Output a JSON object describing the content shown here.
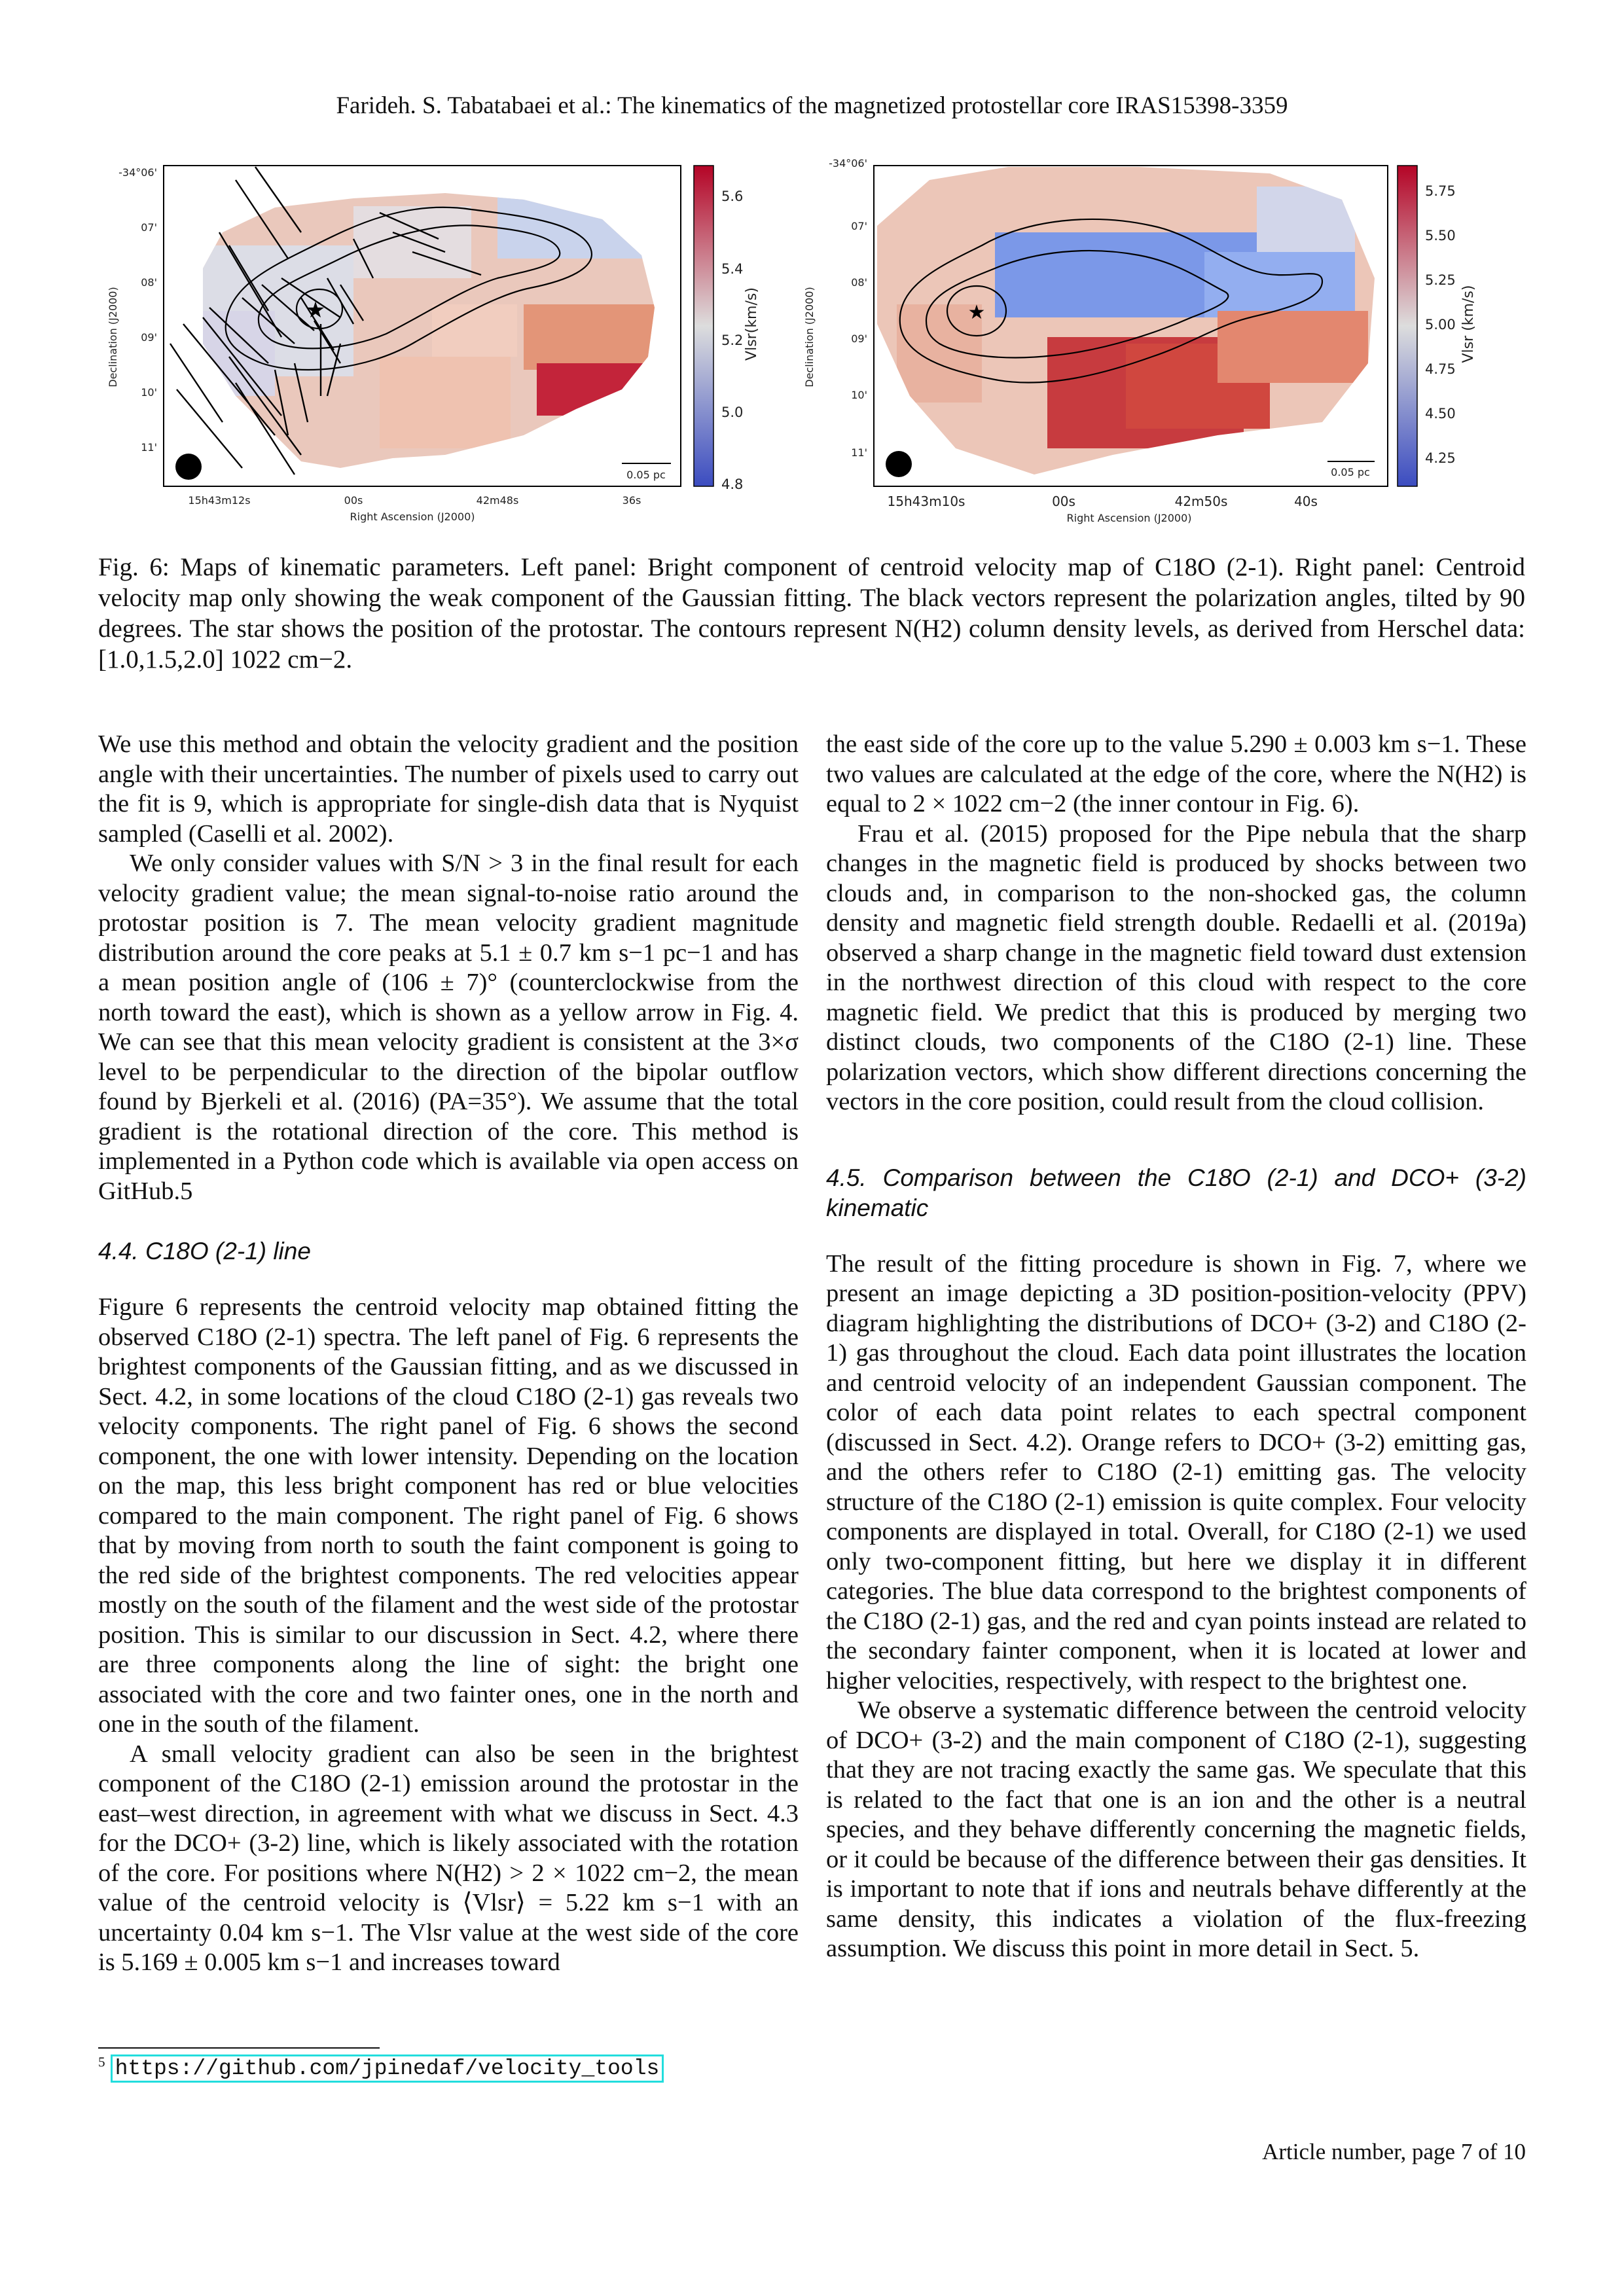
{
  "header": "Farideh. S. Tabatabaei  et al.: The kinematics of the magnetized protostellar core IRAS15398-3359",
  "figure": {
    "left": {
      "dec_ticks": [
        "-34°06'",
        "07'",
        "08'",
        "09'",
        "10'",
        "11'"
      ],
      "ra_ticks": [
        "15h43m12s",
        "00s",
        "42m48s",
        "36s"
      ],
      "ylabel": "Declination (J2000)",
      "xlabel": "Right Ascension (J2000)",
      "cbar_ticks": [
        "5.6",
        "5.4",
        "5.2",
        "5.0",
        "4.8"
      ],
      "cbar_label": "Vlsr(km/s)",
      "scalebar": "0.05 pc"
    },
    "right": {
      "dec_ticks": [
        "-34°06'",
        "07'",
        "08'",
        "09'",
        "10'",
        "11'"
      ],
      "ra_ticks": [
        "15h43m10s",
        "00s",
        "42m50s",
        "40s"
      ],
      "ylabel": "Declination (J2000)",
      "xlabel": "Right Ascension (J2000)",
      "cbar_ticks": [
        "5.75",
        "5.50",
        "5.25",
        "5.00",
        "4.75",
        "4.50",
        "4.25"
      ],
      "cbar_label": "Vlsr (km/s)",
      "scalebar": "0.05 pc"
    }
  },
  "caption": "Fig. 6: Maps of kinematic parameters. Left panel: Bright component of centroid velocity map of C18O (2-1). Right panel: Centroid velocity map only showing the weak component of the Gaussian fitting. The black vectors represent the polarization angles, tilted by 90 degrees. The star shows the position of the protostar. The contours represent N(H2) column density levels, as derived from Herschel data: [1.0,1.5,2.0] 1022 cm−2.",
  "left_column": {
    "p1": "We use this method and obtain the velocity gradient and the position angle with their uncertainties. The number of pixels used to carry out the fit is 9, which is appropriate for single-dish data that is Nyquist sampled (Caselli et al. 2002).",
    "p2": "We only consider values with S/N > 3 in the final result for each velocity gradient value; the mean signal-to-noise ratio around the protostar position is 7. The mean velocity gradient magnitude distribution around the core peaks at 5.1 ± 0.7 km s−1 pc−1 and has a mean position angle of (106 ± 7)° (counterclockwise from the north toward the east), which is shown as a yellow arrow in Fig. 4. We can see that this mean velocity gradient is consistent at the 3×σ level to be perpendicular to the direction of the bipolar outflow found by Bjerkeli et al. (2016) (PA=35°). We assume that the total gradient is the rotational direction of the core. This method is implemented in a Python code which is available via open access on GitHub.5",
    "sec44": "4.4. C18O (2-1) line",
    "p3": "Figure 6 represents the centroid velocity map obtained fitting the observed C18O (2-1) spectra. The left panel of Fig. 6 represents the brightest components of the Gaussian fitting, and as we discussed in Sect. 4.2, in some locations of the cloud C18O (2-1) gas reveals two velocity components. The right panel of Fig. 6 shows the second component, the one with lower intensity. Depending on the location on the map, this less bright component has red or blue velocities compared to the main component. The right panel of Fig. 6 shows that by moving from north to south the faint component is going to the red side of the brightest components. The red velocities appear mostly on the south of the filament and the west side of the protostar position. This is similar to our discussion in Sect. 4.2, where there are three components along the line of sight: the bright one associated with the core and two fainter ones, one in the north and one in the south of the filament.",
    "p4": "A small velocity gradient can also be seen in the brightest component of the C18O (2-1) emission around the protostar in the east–west direction, in agreement with what we discuss in Sect. 4.3 for the DCO+ (3-2) line, which is likely associated with the rotation of the core. For positions where N(H2) > 2 × 1022 cm−2, the mean value of the centroid velocity is ⟨Vlsr⟩ = 5.22 km s−1 with an uncertainty 0.04 km s−1. The Vlsr value at the west side of the core is 5.169 ± 0.005 km s−1 and increases toward"
  },
  "right_column": {
    "p1": "the east side of the core up to the value 5.290 ± 0.003 km s−1. These two values are calculated at the edge of the core, where the N(H2) is equal to 2 × 1022 cm−2 (the inner contour in Fig. 6).",
    "p2": "Frau et al. (2015) proposed for the Pipe nebula that the sharp changes in the magnetic field is produced by shocks between two clouds and, in comparison to the non-shocked gas, the column density and magnetic field strength double. Redaelli et al. (2019a) observed a sharp change in the magnetic field toward dust extension in the northwest direction of this cloud with respect to the core magnetic field. We predict that this is produced by merging two distinct clouds, two components of the C18O (2-1) line. These polarization vectors, which show different directions concerning the vectors in the core position, could result from the cloud collision.",
    "sec45": "4.5. Comparison between the C18O (2-1) and DCO+ (3-2) kinematic",
    "p3": "The result of the fitting procedure is shown in Fig. 7, where we present an image depicting a 3D position-position-velocity (PPV) diagram highlighting the distributions of DCO+ (3-2) and C18O (2-1) gas throughout the cloud. Each data point illustrates the location and centroid velocity of an independent Gaussian component. The color of each data point relates to each spectral component (discussed in Sect. 4.2). Orange refers to DCO+ (3-2) emitting gas, and the others refer to C18O (2-1) emitting gas. The velocity structure of the C18O (2-1) emission is quite complex. Four velocity components are displayed in total. Overall, for C18O (2-1) we used only two-component fitting, but here we display it in different categories. The blue data correspond to the brightest components of the C18O (2-1) gas, and the red and cyan points instead are related to the secondary fainter component, when it is located at lower and higher velocities, respectively, with respect to the brightest one.",
    "p4": "We observe a systematic difference between the centroid velocity of DCO+ (3-2) and the main component of C18O (2-1), suggesting that they are not tracing exactly the same gas. We speculate that this is related to the fact that one is an ion and the other is a neutral species, and they behave differently concerning the magnetic fields, or it could be because of the difference between their gas densities. It is important to note that if ions and neutrals behave differently at the same density, this indicates a violation of the flux-freezing assumption. We discuss this point in more detail in Sect. 5."
  },
  "footnote": {
    "number": "5",
    "url": "https://github.com/jpinedaf/velocity_tools"
  },
  "page_footer": "Article number, page 7 of 10"
}
